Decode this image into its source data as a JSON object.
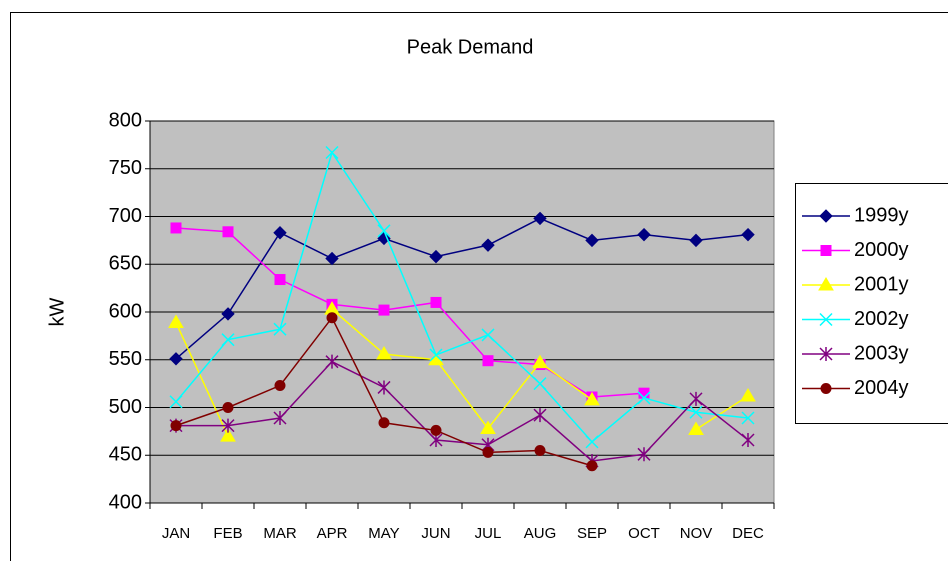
{
  "chart_data": {
    "type": "line",
    "title": "Peak Demand",
    "y_label": "kW",
    "categories": [
      "JAN",
      "FEB",
      "MAR",
      "APR",
      "MAY",
      "JUN",
      "JUL",
      "AUG",
      "SEP",
      "OCT",
      "NOV",
      "DEC"
    ],
    "ylim": [
      400,
      800
    ],
    "yticks": [
      400,
      450,
      500,
      550,
      600,
      650,
      700,
      750,
      800
    ],
    "grid": true,
    "legend": "right",
    "series": [
      {
        "name": "1999y",
        "color": "#000080",
        "marker": "diamond",
        "values": [
          551,
          598,
          683,
          656,
          677,
          658,
          670,
          698,
          675,
          681,
          675,
          681
        ]
      },
      {
        "name": "2000y",
        "color": "#ff00ff",
        "marker": "square",
        "values": [
          688,
          684,
          634,
          608,
          602,
          610,
          549,
          545,
          511,
          515,
          null,
          null
        ]
      },
      {
        "name": "2001y",
        "color": "#ffff00",
        "marker": "triangle",
        "values": [
          589,
          470,
          null,
          603,
          556,
          550,
          478,
          547,
          508,
          null,
          477,
          512
        ]
      },
      {
        "name": "2002y",
        "color": "#00ffff",
        "marker": "x",
        "values": [
          506,
          571,
          582,
          767,
          685,
          555,
          576,
          525,
          464,
          510,
          495,
          489
        ]
      },
      {
        "name": "2003y",
        "color": "#800080",
        "marker": "star",
        "values": [
          481,
          481,
          489,
          548,
          521,
          466,
          461,
          492,
          444,
          451,
          509,
          466
        ]
      },
      {
        "name": "2004y",
        "color": "#800000",
        "marker": "circle",
        "values": [
          481,
          500,
          523,
          594,
          484,
          476,
          453,
          455,
          439,
          null,
          null,
          null
        ]
      }
    ]
  }
}
